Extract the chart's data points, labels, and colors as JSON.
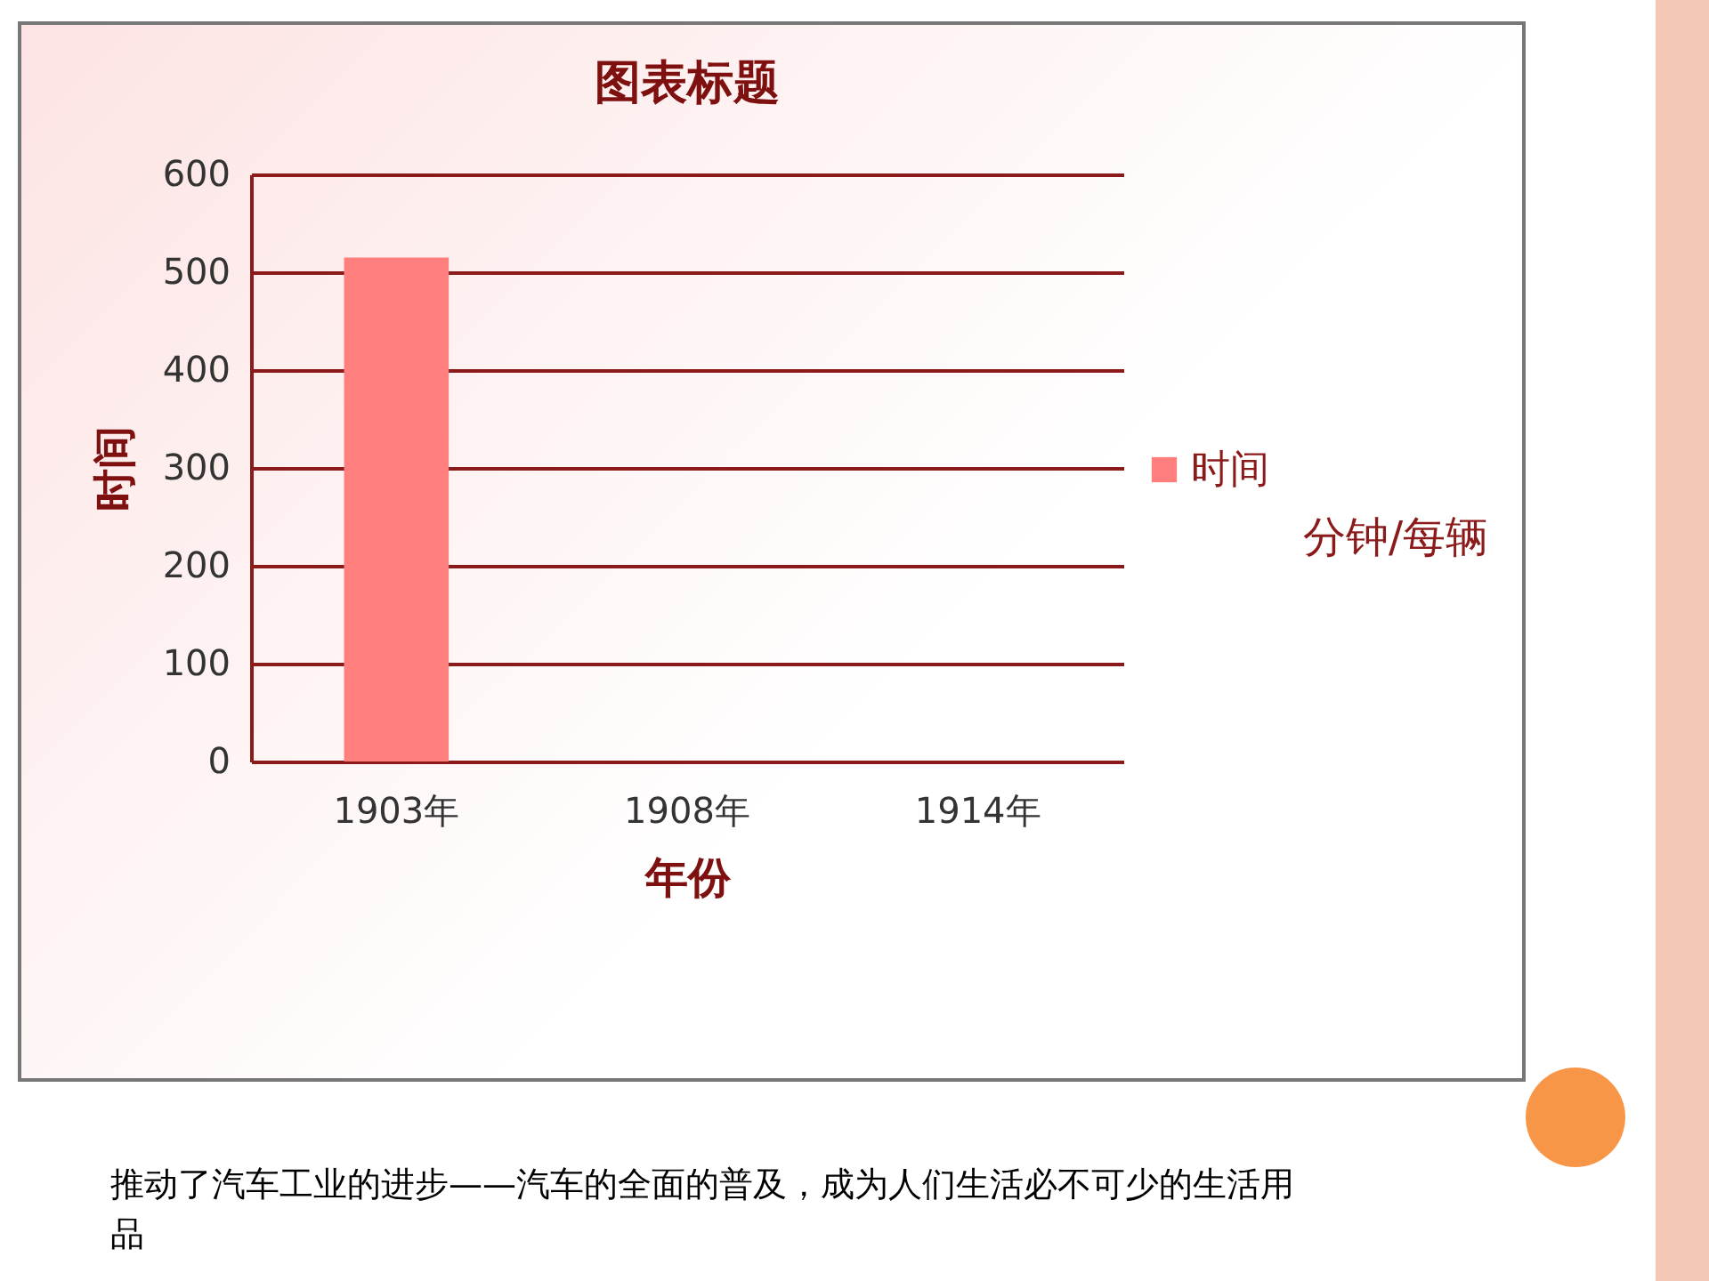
{
  "chart_data": {
    "type": "bar",
    "title": "图表标题",
    "xlabel": "年份",
    "ylabel": "时间",
    "categories": [
      "1903年",
      "1908年",
      "1914年"
    ],
    "series": [
      {
        "name": "时间",
        "color": "#ff7f7f",
        "values": [
          515,
          0,
          0
        ]
      }
    ],
    "ylim": [
      0,
      600
    ],
    "yticks": [
      0,
      100,
      200,
      300,
      400,
      500,
      600
    ],
    "grid": "y",
    "legend": "right",
    "annotations": [
      "分钟/每辆",
      "推动了汽车工业的进步——汽车的全面的普及，成为人们生活必不可少的生活用品"
    ]
  }
}
